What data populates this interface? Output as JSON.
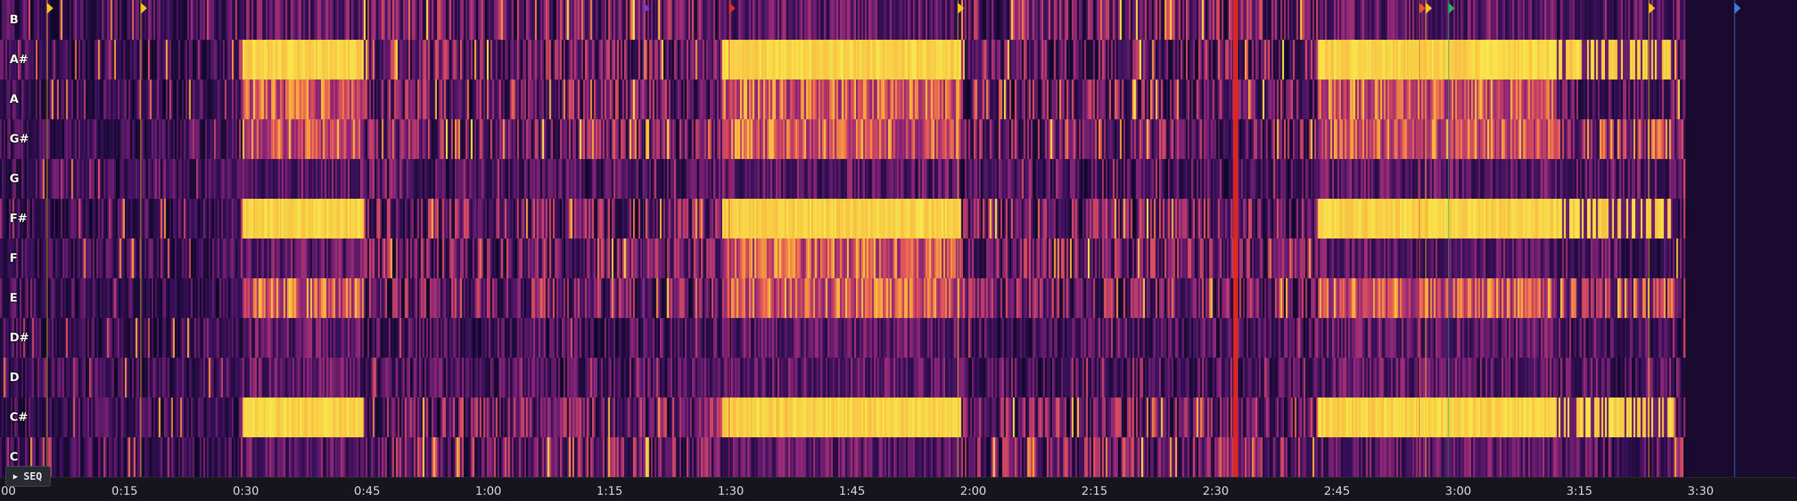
{
  "pitch_rows": [
    "B",
    "A#",
    "A",
    "G#",
    "G",
    "F#",
    "F",
    "E",
    "D#",
    "D",
    "C#",
    "C"
  ],
  "timeline": {
    "duration_s": 223,
    "ticks": [
      {
        "t": 0,
        "label": "0:00"
      },
      {
        "t": 15,
        "label": "0:15"
      },
      {
        "t": 30,
        "label": "0:30"
      },
      {
        "t": 45,
        "label": "0:45"
      },
      {
        "t": 60,
        "label": "1:00"
      },
      {
        "t": 75,
        "label": "1:15"
      },
      {
        "t": 90,
        "label": "1:30"
      },
      {
        "t": 105,
        "label": "1:45"
      },
      {
        "t": 120,
        "label": "2:00"
      },
      {
        "t": 135,
        "label": "2:15"
      },
      {
        "t": 150,
        "label": "2:30"
      },
      {
        "t": 165,
        "label": "2:45"
      },
      {
        "t": 180,
        "label": "3:00"
      },
      {
        "t": 195,
        "label": "3:15"
      },
      {
        "t": 210,
        "label": "3:30"
      }
    ]
  },
  "playhead_s": 152.4,
  "sections": [
    {
      "start": 29.5,
      "end": 44.5,
      "strong": [
        "A#",
        "F#",
        "C#"
      ],
      "medium": [
        "A",
        "G#",
        "E"
      ]
    },
    {
      "start": 88.8,
      "end": 118.3,
      "strong": [
        "A#",
        "F#",
        "C#"
      ],
      "medium": [
        "A",
        "G#",
        "E",
        "F"
      ]
    },
    {
      "start": 162.5,
      "end": 192,
      "strong": [
        "A#",
        "F#",
        "C#"
      ],
      "medium": [
        "A",
        "G#",
        "E"
      ]
    },
    {
      "start": 192,
      "end": 206.5,
      "strong": [
        "A#",
        "F#",
        "C#"
      ],
      "medium": [
        "G#",
        "E"
      ]
    }
  ],
  "markers": [
    {
      "t": 5.4,
      "color": "#f5c518"
    },
    {
      "t": 17,
      "color": "#f5c518"
    },
    {
      "t": 79.2,
      "color": "#7b3fc4"
    },
    {
      "t": 89.8,
      "color": "#e0282a"
    },
    {
      "t": 118.1,
      "color": "#f5c518"
    },
    {
      "t": 175.2,
      "color": "#e85a2a"
    },
    {
      "t": 176,
      "color": "#f5c518"
    },
    {
      "t": 178.8,
      "color": "#2fa86a"
    },
    {
      "t": 203.6,
      "color": "#f5c518"
    },
    {
      "t": 214.2,
      "color": "#3b7fe0"
    }
  ],
  "colors": {
    "low": "#1a0b2e",
    "mid": "#8a2a7a",
    "high": "#f7e84a",
    "playhead": "#e0281e"
  },
  "seq_button": {
    "label": "SEQ",
    "icon": "play-icon"
  }
}
